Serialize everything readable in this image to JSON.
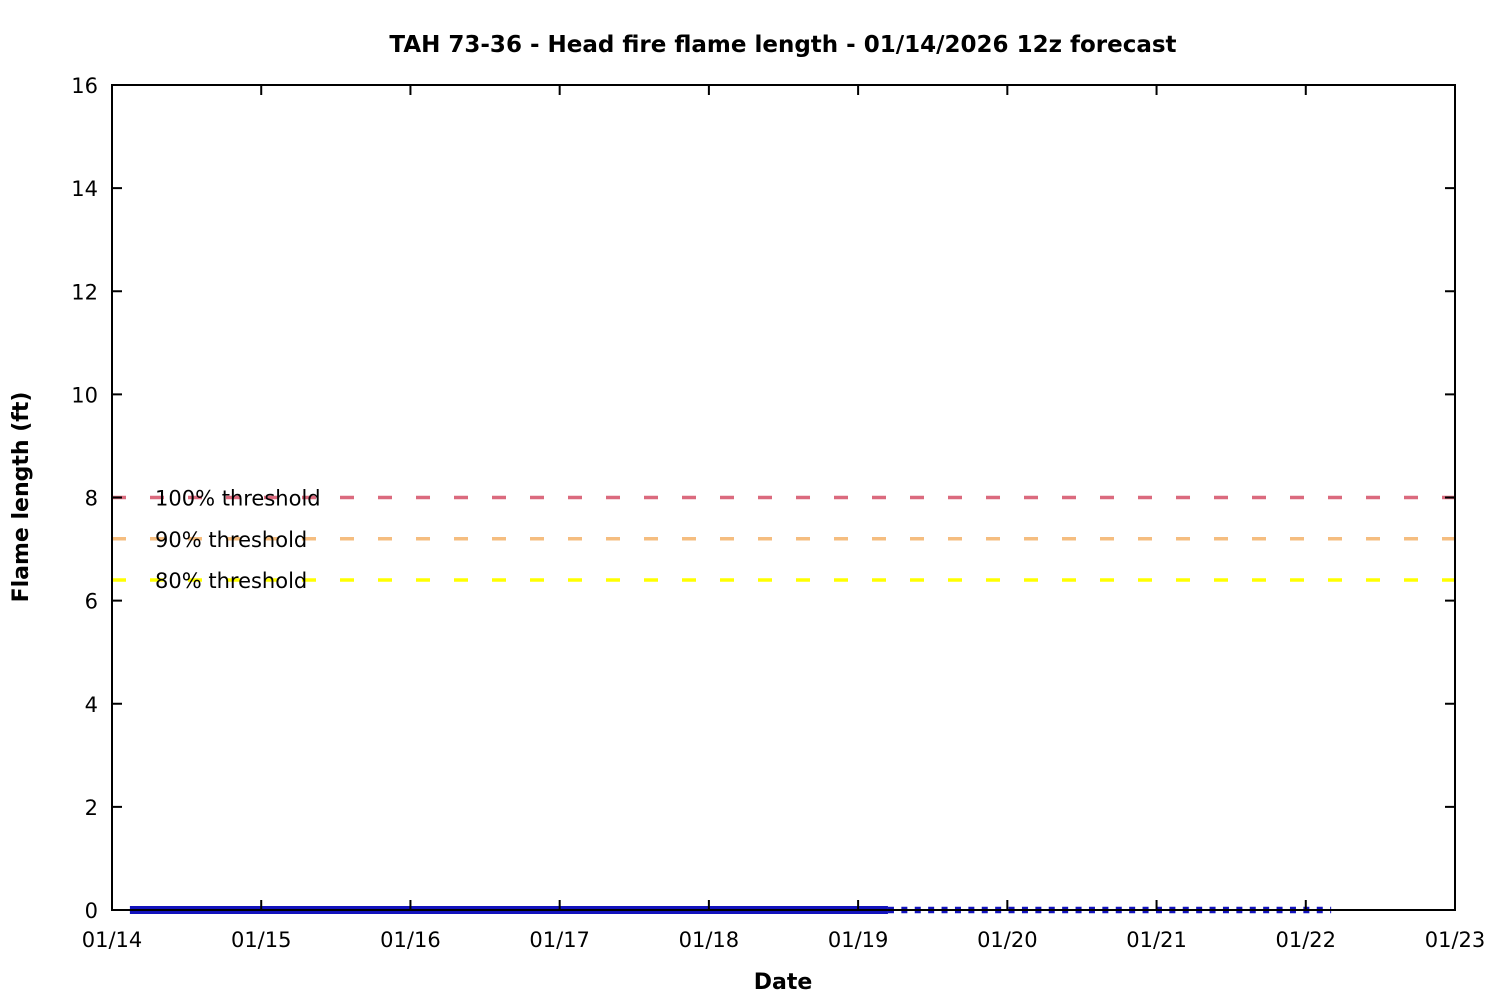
{
  "chart_data": {
    "type": "line",
    "title": "TAH 73-36 - Head fire flame length - 01/14/2026 12z forecast",
    "xlabel": "Date",
    "ylabel": "Flame length (ft)",
    "ylim": [
      0,
      16
    ],
    "yticks": [
      0,
      2,
      4,
      6,
      8,
      10,
      12,
      14,
      16
    ],
    "xticks": [
      "01/14",
      "01/15",
      "01/16",
      "01/17",
      "01/18",
      "01/19",
      "01/20",
      "01/21",
      "01/22",
      "01/23"
    ],
    "xlim_days": [
      0,
      9
    ],
    "grid": false,
    "legend_position": "none",
    "thresholds": [
      {
        "label": "100% threshold",
        "value": 8.0,
        "color": "#db6a7e"
      },
      {
        "label": "90% threshold",
        "value": 7.2,
        "color": "#f5bd7f"
      },
      {
        "label": "80% threshold",
        "value": 6.4,
        "color": "#ffff00"
      }
    ],
    "series": [
      {
        "name": "flame-length-solid-segment",
        "style": "solid",
        "color": "#1212bd",
        "points": [
          [
            0.12,
            0
          ],
          [
            5.2,
            0
          ]
        ]
      },
      {
        "name": "flame-length-dotted-segment",
        "style": "dotted",
        "color": "#1212bd",
        "points": [
          [
            5.2,
            0
          ],
          [
            8.17,
            0
          ]
        ]
      }
    ]
  }
}
